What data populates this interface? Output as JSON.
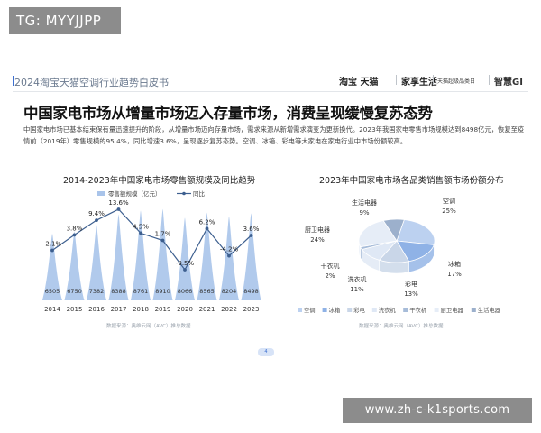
{
  "tag": "TG: MYYJJPP",
  "header": {
    "title": "2024淘宝天猫空调行业趋势白皮书",
    "brand_taobao": "淘宝 天猫",
    "brand_jiaxiang": "家享生活",
    "brand_tmall_elec": "天猫超级品类日",
    "brand_ai": "智慧GI"
  },
  "headline": "中国家电市场从增量市场迈入存量市场，消费呈现缓慢复苏态势",
  "body_text": "中国家电市场已基本结束保有量迅速提升的阶段，从增量市场迈向存量市场，需求来源从新增需求演变为更新换代。2023年我国家电零售市场规模达到8498亿元，恢复至疫情前（2019年）零售规模的95.4%，同比增速3.6%，呈现逐步复苏态势。空调、冰箱、彩电等大家电在家电行业中市场份额较高。",
  "page_number": "4",
  "watermark": "www.zh-c-k1sports.com",
  "colors": {
    "bar": "#a9c4ea",
    "line": "#3d5f8f",
    "accent": "#3c6fd1",
    "pie": [
      "#bcd1f0",
      "#8fb2e6",
      "#c9d6e8",
      "#dfe8f5",
      "#a7bcd9",
      "#e6edf7",
      "#9cb0cc"
    ]
  },
  "chart_data": [
    {
      "type": "bar",
      "title": "2014-2023年中国家电市场零售额规模及同比趋势",
      "legend": [
        "零售额规模（亿元）",
        "同比"
      ],
      "legend_position": "top",
      "categories": [
        "2014",
        "2015",
        "2016",
        "2017",
        "2018",
        "2019",
        "2020",
        "2021",
        "2022",
        "2023"
      ],
      "series": [
        {
          "name": "零售额规模（亿元）",
          "type": "bar",
          "values": [
            6505,
            6750,
            7382,
            8388,
            8761,
            8910,
            8066,
            8565,
            8204,
            8498
          ]
        },
        {
          "name": "同比",
          "type": "line",
          "values": [
            -2.1,
            3.8,
            9.4,
            13.6,
            4.5,
            1.7,
            -9.5,
            6.2,
            -4.2,
            3.6
          ],
          "labels": [
            "-2.1%",
            "3.8%",
            "9.4%",
            "13.6%",
            "4.5%",
            "1.7%",
            "-9.5%",
            "6.2%",
            "-4.2%",
            "3.6%"
          ]
        }
      ],
      "ylim": [
        0,
        9500
      ],
      "y2lim": [
        -15,
        16
      ],
      "grid": false,
      "source": "数据来源：奥维云网（AVC）推总数据"
    },
    {
      "type": "pie",
      "title": "2023年中国家电市场各品类销售额市场份额分布",
      "categories": [
        "空调",
        "冰箱",
        "彩电",
        "洗衣机",
        "干衣机",
        "厨卫电器",
        "生活电器"
      ],
      "values": [
        25,
        17,
        13,
        11,
        2,
        24,
        9
      ],
      "labels": [
        "25%",
        "17%",
        "13%",
        "11%",
        "2%",
        "24%",
        "9%"
      ],
      "legend_position": "bottom",
      "source": "数据来源：奥维云网（AVC）推总数据"
    }
  ]
}
